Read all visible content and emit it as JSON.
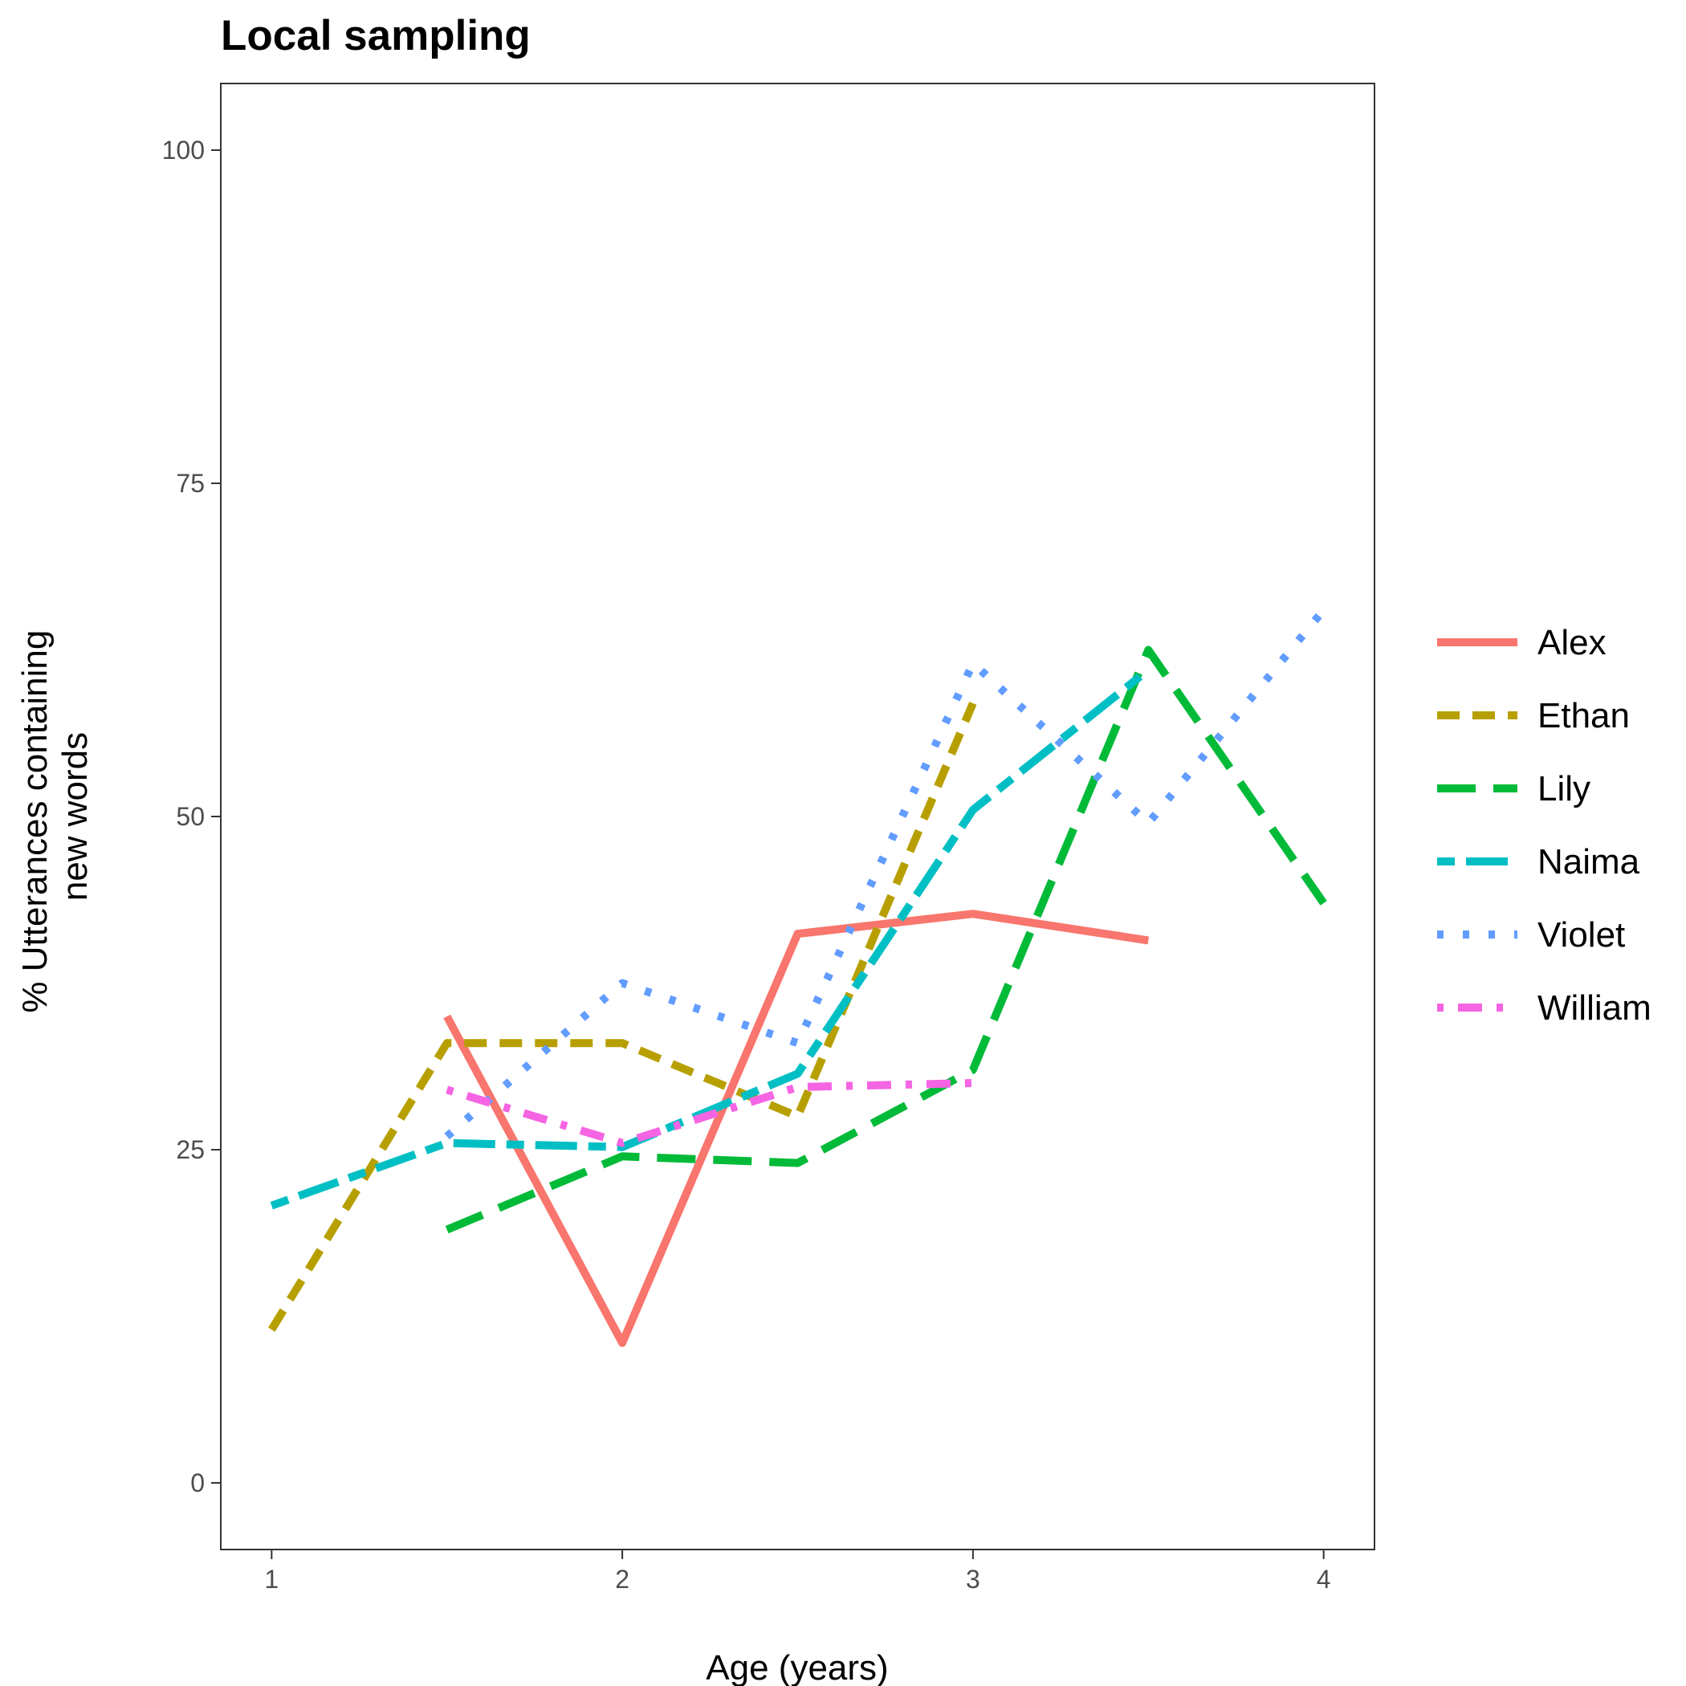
{
  "chart_data": {
    "type": "line",
    "title": "Local sampling",
    "xlabel": "Age (years)",
    "ylabel_lines": [
      "% Utterances containing",
      "new words"
    ],
    "xlim": [
      0.855,
      4.145
    ],
    "ylim": [
      -5,
      105
    ],
    "x_ticks": [
      1,
      2,
      3,
      4
    ],
    "y_ticks": [
      0,
      25,
      50,
      75,
      100
    ],
    "grid": false,
    "legend_position": "right",
    "series": [
      {
        "name": "Alex",
        "color": "#F8766D",
        "dash": "solid",
        "x": [
          1.5,
          2.0,
          2.5,
          3.0,
          3.5
        ],
        "y": [
          35.0,
          10.5,
          41.2,
          42.7,
          40.7
        ]
      },
      {
        "name": "Ethan",
        "color": "#B79F00",
        "dash": "dashed",
        "x": [
          1.0,
          1.5,
          2.0,
          2.5,
          3.0
        ],
        "y": [
          11.5,
          33.0,
          33.0,
          27.5,
          58.5
        ]
      },
      {
        "name": "Lily",
        "color": "#00BA38",
        "dash": "longdash",
        "x": [
          1.5,
          2.0,
          2.5,
          3.0,
          3.5,
          4.0
        ],
        "y": [
          19.0,
          24.5,
          24.0,
          31.0,
          62.5,
          43.5
        ]
      },
      {
        "name": "Naima",
        "color": "#00BFC4",
        "dash": "twodash",
        "x": [
          1.0,
          1.5,
          2.0,
          2.5,
          3.0,
          3.5
        ],
        "y": [
          20.8,
          25.5,
          25.2,
          30.7,
          50.5,
          61.0
        ]
      },
      {
        "name": "Violet",
        "color": "#619CFF",
        "dash": "dotted",
        "x": [
          1.5,
          2.0,
          2.5,
          3.0,
          3.5,
          4.0
        ],
        "y": [
          26.0,
          37.5,
          33.0,
          61.5,
          49.5,
          65.5
        ]
      },
      {
        "name": "William",
        "color": "#F564E3",
        "dash": "dotdash",
        "x": [
          1.5,
          2.0,
          2.5,
          3.0
        ],
        "y": [
          29.5,
          25.5,
          29.7,
          30.0
        ]
      }
    ]
  }
}
